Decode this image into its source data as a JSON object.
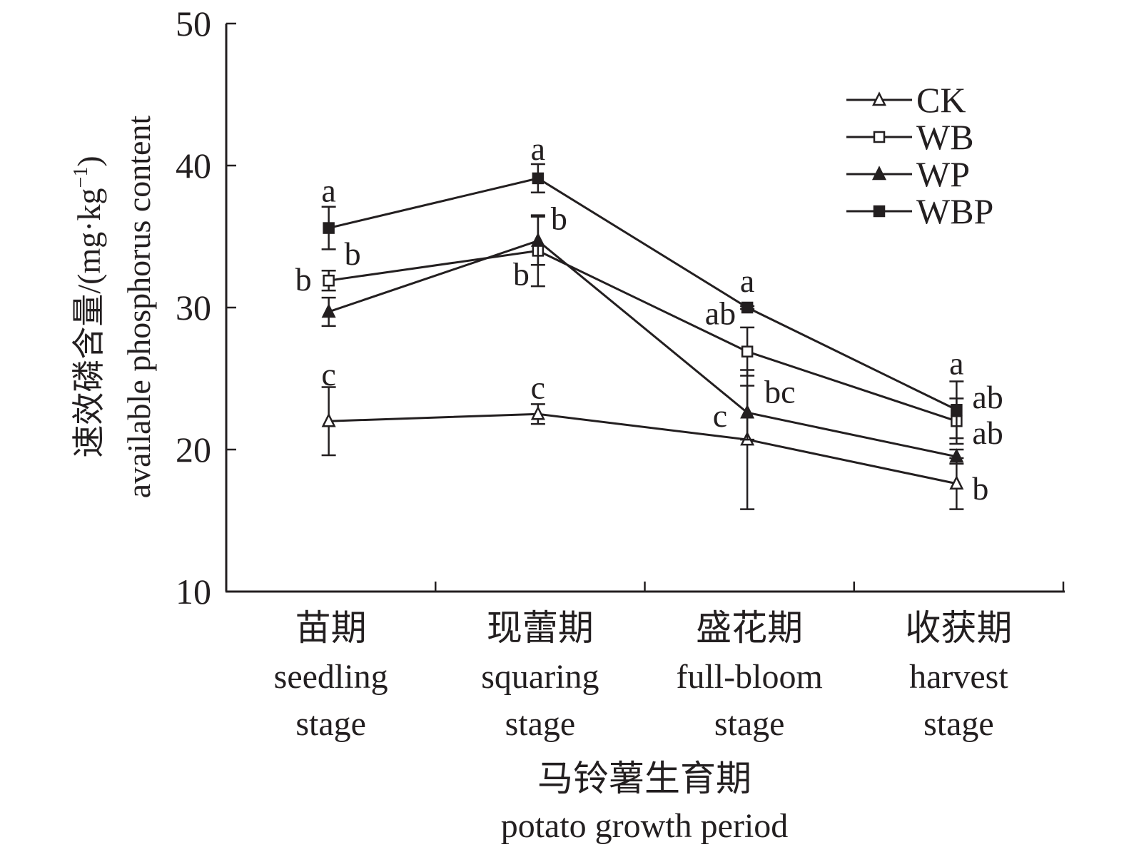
{
  "chart_data": {
    "type": "line",
    "title": "",
    "ylabel_cn": "速效磷含量/(mg·kg",
    "ylabel_sup": "−1",
    "ylabel_close": ")",
    "ylabel_en": "available phosphorus content",
    "xlabel_cn": "马铃薯生育期",
    "xlabel_en": "potato growth period",
    "ylim": [
      10,
      50
    ],
    "yticks": [
      "10",
      "20",
      "30",
      "40",
      "50"
    ],
    "ytick_values": [
      10,
      20,
      30,
      40,
      50
    ],
    "categories": [
      {
        "cn": "苗期",
        "en1": "seedling",
        "en2": "stage"
      },
      {
        "cn": "现蕾期",
        "en1": "squaring",
        "en2": "stage"
      },
      {
        "cn": "盛花期",
        "en1": "full-bloom",
        "en2": "stage"
      },
      {
        "cn": "收获期",
        "en1": "harvest",
        "en2": "stage"
      }
    ],
    "legend_position": "top-right",
    "series": [
      {
        "name": "CK",
        "marker": "triangle-open",
        "values": [
          22.0,
          22.5,
          20.7,
          17.6
        ],
        "errors": [
          2.4,
          0.7,
          4.9,
          1.8
        ],
        "letters": [
          "c",
          "c",
          "c",
          "b"
        ]
      },
      {
        "name": "WB",
        "marker": "square-open",
        "values": [
          31.9,
          34.0,
          26.9,
          22.0
        ],
        "errors": [
          0.7,
          2.5,
          1.7,
          1.6
        ],
        "letters": [
          "b",
          "b",
          "ab",
          "ab"
        ]
      },
      {
        "name": "WP",
        "marker": "triangle-filled",
        "values": [
          29.7,
          34.7,
          22.6,
          19.5
        ],
        "errors": [
          1.0,
          1.7,
          1.9,
          0.5
        ],
        "letters": [
          "b",
          "b",
          "bc",
          "ab"
        ]
      },
      {
        "name": "WBP",
        "marker": "square-filled",
        "values": [
          35.6,
          39.1,
          30.0,
          22.8
        ],
        "errors": [
          1.5,
          1.0,
          0.1,
          2.0
        ],
        "letters": [
          "a",
          "a",
          "a",
          "a"
        ]
      }
    ],
    "line_color": "#231f20"
  }
}
